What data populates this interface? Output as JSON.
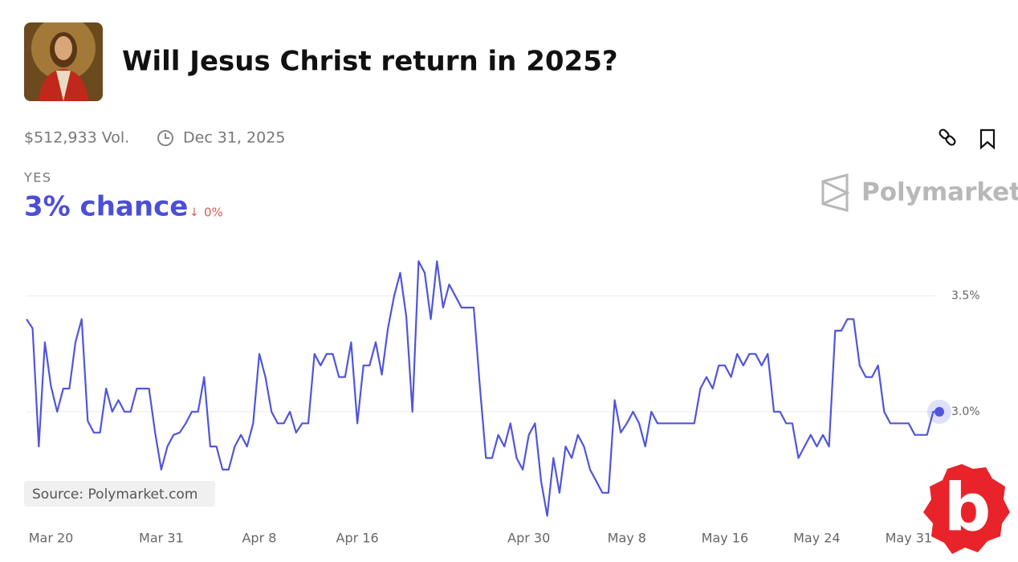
{
  "header": {
    "title": "Will Jesus Christ return in 2025?",
    "volume": "$512,933 Vol.",
    "end_date": "Dec 31, 2025",
    "outcome": "YES",
    "chance": "3% chance",
    "change": "0%",
    "brand": "Polymarket",
    "source": "Source: Polymarket.com",
    "watermark": "b"
  },
  "chart_data": {
    "type": "line",
    "categories": [
      null,
      null,
      null,
      null,
      "Mar 20",
      null,
      null,
      null,
      null,
      null,
      null,
      null,
      null,
      null,
      null,
      null,
      null,
      null,
      null,
      null,
      null,
      null,
      "Mar 31",
      null,
      null,
      null,
      null,
      null,
      null,
      null,
      null,
      null,
      null,
      null,
      null,
      null,
      null,
      null,
      "Apr 8",
      null,
      null,
      null,
      null,
      null,
      null,
      null,
      null,
      null,
      null,
      null,
      null,
      null,
      null,
      null,
      "Apr 16",
      null,
      null,
      null,
      null,
      null,
      null,
      null,
      null,
      null,
      null,
      null,
      null,
      null,
      null,
      null,
      null,
      null,
      null,
      null,
      null,
      null,
      null,
      null,
      null,
      null,
      null,
      null,
      "Apr 30",
      null,
      null,
      null,
      null,
      null,
      null,
      null,
      null,
      null,
      null,
      null,
      null,
      null,
      null,
      null,
      "May 8",
      null,
      null,
      null,
      null,
      null,
      null,
      null,
      null,
      null,
      null,
      null,
      null,
      null,
      null,
      null,
      "May 16",
      null,
      null,
      null,
      null,
      null,
      null,
      null,
      null,
      null,
      null,
      null,
      null,
      null,
      null,
      "May 24",
      null,
      null,
      null,
      null,
      null,
      null,
      null,
      null,
      null,
      null,
      null,
      null,
      null,
      null,
      "May 31",
      null,
      null,
      null,
      null,
      null
    ],
    "series": [
      {
        "name": "YES",
        "color": "#5055db",
        "values": [
          3.4,
          3.36,
          2.85,
          3.3,
          3.11,
          3.0,
          3.1,
          3.1,
          3.3,
          3.4,
          2.96,
          2.91,
          2.91,
          3.1,
          3.0,
          3.05,
          3.0,
          3.0,
          3.1,
          3.1,
          3.1,
          2.91,
          2.75,
          2.85,
          2.9,
          2.91,
          2.95,
          3.0,
          3.0,
          3.15,
          2.85,
          2.85,
          2.75,
          2.75,
          2.85,
          2.9,
          2.85,
          2.95,
          3.25,
          3.15,
          3.0,
          2.95,
          2.95,
          3.0,
          2.91,
          2.95,
          2.95,
          3.25,
          3.2,
          3.25,
          3.25,
          3.15,
          3.15,
          3.3,
          2.95,
          3.2,
          3.2,
          3.3,
          3.16,
          3.36,
          3.5,
          3.6,
          3.41,
          3.0,
          3.65,
          3.6,
          3.4,
          3.65,
          3.45,
          3.55,
          3.5,
          3.45,
          3.45,
          3.45,
          3.11,
          2.8,
          2.8,
          2.9,
          2.85,
          2.95,
          2.8,
          2.75,
          2.9,
          2.95,
          2.7,
          2.55,
          2.8,
          2.65,
          2.85,
          2.8,
          2.9,
          2.85,
          2.75,
          2.7,
          2.65,
          2.65,
          3.05,
          2.91,
          2.95,
          3.0,
          2.95,
          2.85,
          3.0,
          2.95,
          2.95,
          2.95,
          2.95,
          2.95,
          2.95,
          2.95,
          3.1,
          3.15,
          3.1,
          3.2,
          3.2,
          3.15,
          3.25,
          3.2,
          3.25,
          3.25,
          3.2,
          3.25,
          3.0,
          3.0,
          2.95,
          2.95,
          2.8,
          2.85,
          2.9,
          2.85,
          2.9,
          2.85,
          3.35,
          3.35,
          3.4,
          3.4,
          3.2,
          3.15,
          3.15,
          3.2,
          3.0,
          2.95,
          2.95,
          2.95,
          2.95,
          2.9,
          2.9,
          2.9,
          3.0,
          3.0
        ]
      }
    ],
    "ylim": [
      2.5,
      3.7
    ],
    "yticks": [
      {
        "value": 3.0,
        "label": "3.0%"
      },
      {
        "value": 3.5,
        "label": "3.5%"
      }
    ],
    "grid": true
  }
}
